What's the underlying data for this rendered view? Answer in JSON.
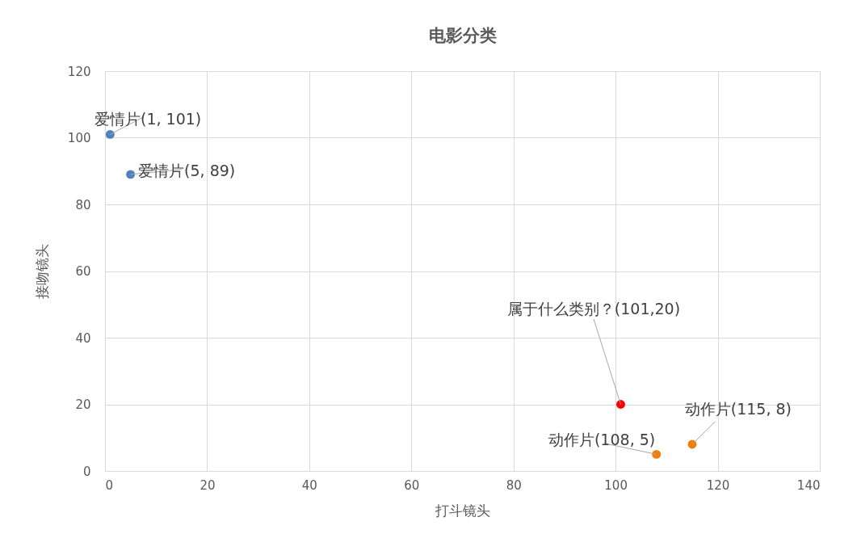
{
  "chart_data": {
    "type": "scatter",
    "title": "电影分类",
    "xlabel": "打斗镜头",
    "ylabel": "接吻镜头",
    "marker": "circle",
    "grid": true,
    "xlim": [
      0,
      140
    ],
    "xticks": [
      0,
      20,
      40,
      60,
      80,
      100,
      120,
      140
    ],
    "ylim": [
      0,
      120
    ],
    "yticks": [
      0,
      20,
      40,
      60,
      80,
      100,
      120
    ],
    "series": [
      {
        "color": "#4f81bd",
        "x": [
          1,
          5
        ],
        "values": [
          101,
          89
        ]
      },
      {
        "color": "#f07f09",
        "x": [
          108,
          115
        ],
        "values": [
          5,
          8
        ]
      },
      {
        "color": "#ff0000",
        "x": [
          101
        ],
        "values": [
          20
        ]
      }
    ],
    "annotations": [
      {
        "text": "爱情片(1, 101)",
        "x": 1,
        "y": 101
      },
      {
        "text": "爱情片(5, 89)",
        "x": 5,
        "y": 89
      },
      {
        "text": "属于什么类别？(101,20)",
        "x": 101,
        "y": 20
      },
      {
        "text": "动作片(108, 5)",
        "x": 108,
        "y": 5
      },
      {
        "text": "动作片(115, 8)",
        "x": 115,
        "y": 8
      }
    ]
  }
}
